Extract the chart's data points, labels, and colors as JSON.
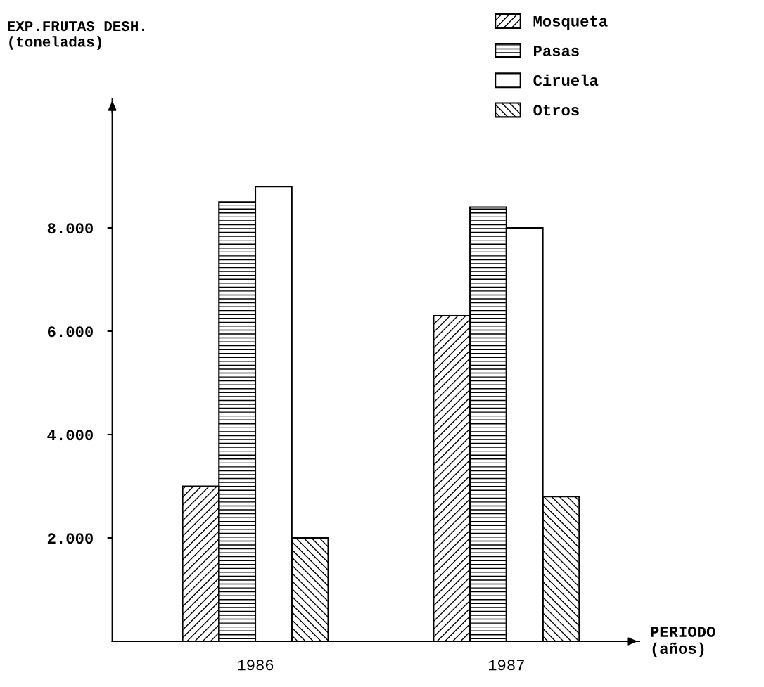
{
  "chart_data": {
    "type": "bar",
    "xlabel": "PERIODO\n(años)",
    "ylabel": "EXP.FRUTAS DESH.\n(toneladas)",
    "categories": [
      "1986",
      "1987"
    ],
    "series": [
      {
        "name": "Mosqueta",
        "color": "#000000",
        "values": [
          3000,
          6300
        ]
      },
      {
        "name": "Pasas",
        "color": "#000000",
        "values": [
          8500,
          8400
        ]
      },
      {
        "name": "Ciruela",
        "color": "#ffffff",
        "values": [
          8800,
          8000
        ]
      },
      {
        "name": "Otros",
        "color": "#000000",
        "values": [
          2000,
          2800
        ]
      }
    ],
    "ylim": [
      0,
      10500
    ],
    "yticks": [
      {
        "value": 2000,
        "label": "2.000"
      },
      {
        "value": 4000,
        "label": "4.000"
      },
      {
        "value": 6000,
        "label": "6.000"
      },
      {
        "value": 8000,
        "label": "8.000"
      }
    ],
    "grid": false,
    "legend": "top right"
  }
}
